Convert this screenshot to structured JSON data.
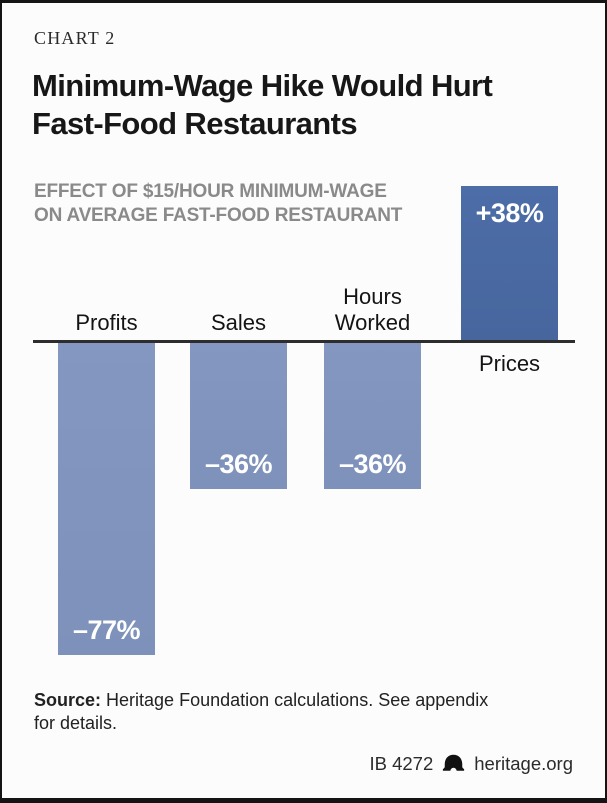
{
  "page": {
    "kicker": "CHART 2",
    "title_line1": "Minimum-Wage Hike Would Hurt",
    "title_line2": "Fast-Food Restaurants",
    "subtitle_line1": "EFFECT OF $15/HOUR MINIMUM-WAGE",
    "subtitle_line2": "ON AVERAGE FAST-FOOD RESTAURANT",
    "source_label": "Source:",
    "source_text": " Heritage Foundation calculations. See appendix",
    "source_text_line2": "for details.",
    "footer_id": "IB 4272",
    "footer_site": "heritage.org"
  },
  "chart_data": {
    "type": "bar",
    "title": "Minimum-Wage Hike Would Hurt Fast-Food Restaurants",
    "subtitle": "EFFECT OF $15/HOUR MINIMUM-WAGE ON AVERAGE FAST-FOOD RESTAURANT",
    "categories": [
      "Profits",
      "Sales",
      "Hours Worked",
      "Prices"
    ],
    "values": [
      -77,
      -36,
      -36,
      38
    ],
    "value_labels": [
      "–77%",
      "–36%",
      "–36%",
      "+38%"
    ],
    "unit": "%",
    "ylim": [
      -77,
      38
    ],
    "baseline": 0,
    "grid": false,
    "legend": false,
    "colors": {
      "positive_bar": "#4a69a3",
      "negative_bar": "#8094bd",
      "axis": "#2d2d2d",
      "value_text": "#ffffff"
    },
    "source": "Source: Heritage Foundation calculations. See appendix for details.",
    "attribution": "IB 4272 heritage.org"
  }
}
